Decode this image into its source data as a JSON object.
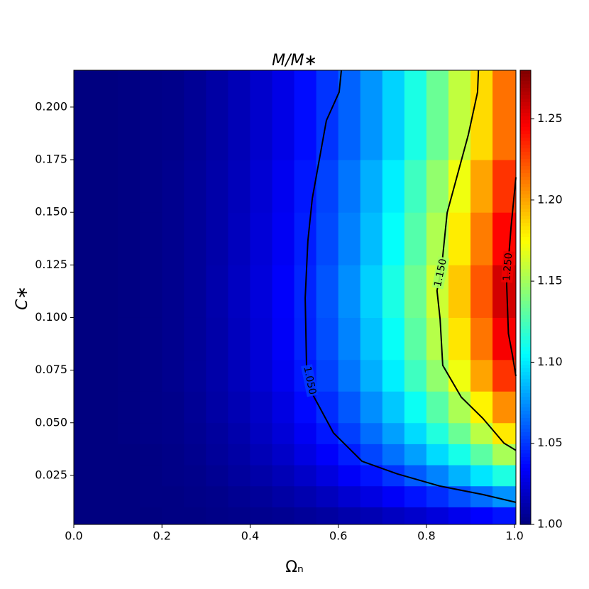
{
  "chart_data": {
    "type": "heatmap",
    "title": "M/M∗",
    "x_label": "Ωₙ",
    "y_label": "C∗",
    "xlim": [
      0,
      1.003
    ],
    "ylim": [
      0.0017,
      0.2175
    ],
    "xticks": [
      {
        "value": 0,
        "label": "0.0"
      },
      0.2,
      0.4,
      0.6,
      0.8,
      {
        "value": 1,
        "label": "1.0"
      }
    ],
    "yticks": [
      0.025,
      {
        "value": 0.05,
        "label": "0.050"
      },
      0.075,
      {
        "value": 0.1,
        "label": "0.100"
      },
      0.125,
      {
        "value": 0.15,
        "label": "0.150"
      },
      0.175,
      {
        "value": 0.2,
        "label": "0.200"
      }
    ],
    "colormap": "jet",
    "clim": [
      1.0,
      1.28
    ],
    "cticks": [
      {
        "value": 1,
        "label": "1.00"
      },
      1.05,
      {
        "value": 1.1,
        "label": "1.10"
      },
      1.15,
      {
        "value": 1.2,
        "label": "1.20"
      },
      1.25
    ],
    "x_edges": [
      0,
      0.05,
      0.1,
      0.15,
      0.2,
      0.25,
      0.3,
      0.35,
      0.4,
      0.45,
      0.5,
      0.55,
      0.6,
      0.65,
      0.7,
      0.75,
      0.8,
      0.85,
      0.9,
      0.95,
      1.003
    ],
    "y_edges": [
      0.0017,
      0.01,
      0.02,
      0.03,
      0.04,
      0.05,
      0.065,
      0.08,
      0.1,
      0.125,
      0.15,
      0.175,
      0.2175
    ],
    "z": [
      [
        1,
        1,
        1,
        1,
        1.001,
        1.001,
        1.002,
        1.003,
        1.004,
        1.005,
        1.007,
        1.009,
        1.012,
        1.014,
        1.018,
        1.021,
        1.025,
        1.03,
        1.035,
        1.04
      ],
      [
        1,
        1,
        1,
        1.001,
        1.001,
        1.002,
        1.003,
        1.005,
        1.007,
        1.01,
        1.013,
        1.017,
        1.022,
        1.027,
        1.033,
        1.04,
        1.047,
        1.056,
        1.065,
        1.075
      ],
      [
        1,
        1,
        1,
        1.001,
        1.002,
        1.003,
        1.005,
        1.008,
        1.011,
        1.015,
        1.02,
        1.026,
        1.033,
        1.04,
        1.049,
        1.06,
        1.071,
        1.084,
        1.098,
        1.113
      ],
      [
        1,
        1,
        1,
        1.001,
        1.002,
        1.004,
        1.007,
        1.01,
        1.015,
        1.02,
        1.027,
        1.034,
        1.043,
        1.054,
        1.066,
        1.079,
        1.095,
        1.111,
        1.13,
        1.151
      ],
      [
        1,
        1,
        1.001,
        1.002,
        1.003,
        1.005,
        1.008,
        1.012,
        1.018,
        1.024,
        1.032,
        1.041,
        1.052,
        1.065,
        1.079,
        1.095,
        1.114,
        1.134,
        1.156,
        1.181
      ],
      [
        1,
        1,
        1.001,
        1.002,
        1.003,
        1.006,
        1.01,
        1.014,
        1.02,
        1.027,
        1.037,
        1.047,
        1.059,
        1.074,
        1.09,
        1.108,
        1.129,
        1.152,
        1.178,
        1.206
      ],
      [
        1,
        1,
        1.001,
        1.002,
        1.004,
        1.007,
        1.011,
        1.016,
        1.023,
        1.031,
        1.041,
        1.053,
        1.067,
        1.083,
        1.101,
        1.122,
        1.145,
        1.171,
        1.2,
        1.231
      ],
      [
        1,
        1,
        1.001,
        1.002,
        1.004,
        1.007,
        1.011,
        1.017,
        1.024,
        1.033,
        1.044,
        1.056,
        1.071,
        1.088,
        1.107,
        1.13,
        1.155,
        1.182,
        1.213,
        1.247
      ],
      [
        1,
        1,
        1.001,
        1.002,
        1.004,
        1.007,
        1.012,
        1.018,
        1.025,
        1.034,
        1.045,
        1.058,
        1.074,
        1.092,
        1.112,
        1.135,
        1.161,
        1.19,
        1.221,
        1.257
      ],
      [
        1,
        1,
        1.001,
        1.002,
        1.004,
        1.007,
        1.011,
        1.017,
        1.024,
        1.032,
        1.043,
        1.055,
        1.07,
        1.087,
        1.106,
        1.128,
        1.153,
        1.18,
        1.211,
        1.244
      ],
      [
        1,
        1,
        1.001,
        1.002,
        1.004,
        1.007,
        1.011,
        1.016,
        1.023,
        1.031,
        1.041,
        1.053,
        1.067,
        1.083,
        1.101,
        1.122,
        1.145,
        1.171,
        1.2,
        1.231
      ],
      [
        1,
        1,
        1.001,
        1.002,
        1.003,
        1.006,
        1.01,
        1.015,
        1.021,
        1.028,
        1.038,
        1.049,
        1.062,
        1.076,
        1.093,
        1.112,
        1.134,
        1.158,
        1.185,
        1.214
      ]
    ],
    "contours": [
      {
        "level": {
          "value": 1.05,
          "label": "1.050"
        },
        "x": [
          0.607,
          0.602,
          0.573,
          0.541,
          0.531,
          0.525,
          0.528,
          0.541,
          0.589,
          0.654,
          0.734,
          0.831,
          0.928,
          1.003
        ],
        "y": [
          0.2175,
          0.2071,
          0.1936,
          0.1565,
          0.1363,
          0.1093,
          0.0773,
          0.0638,
          0.0452,
          0.0317,
          0.0257,
          0.0199,
          0.0159,
          0.0122
        ]
      },
      {
        "level": {
          "value": 1.15,
          "label": "1.150"
        },
        "x": [
          0.918,
          0.916,
          0.895,
          0.847,
          0.834,
          0.824,
          0.831,
          0.837,
          0.879,
          0.928,
          0.976,
          1.003
        ],
        "y": [
          0.2175,
          0.2071,
          0.1868,
          0.1498,
          0.1229,
          0.1128,
          0.0993,
          0.0773,
          0.0622,
          0.0521,
          0.0403,
          0.0369
        ]
      },
      {
        "level": {
          "value": 1.25,
          "label": "1.250"
        },
        "x": [
          1.003,
          0.992,
          0.982,
          0.986,
          0.995,
          1.003
        ],
        "y": [
          0.1666,
          0.143,
          0.116,
          0.0924,
          0.0823,
          0.0722
        ]
      }
    ]
  }
}
